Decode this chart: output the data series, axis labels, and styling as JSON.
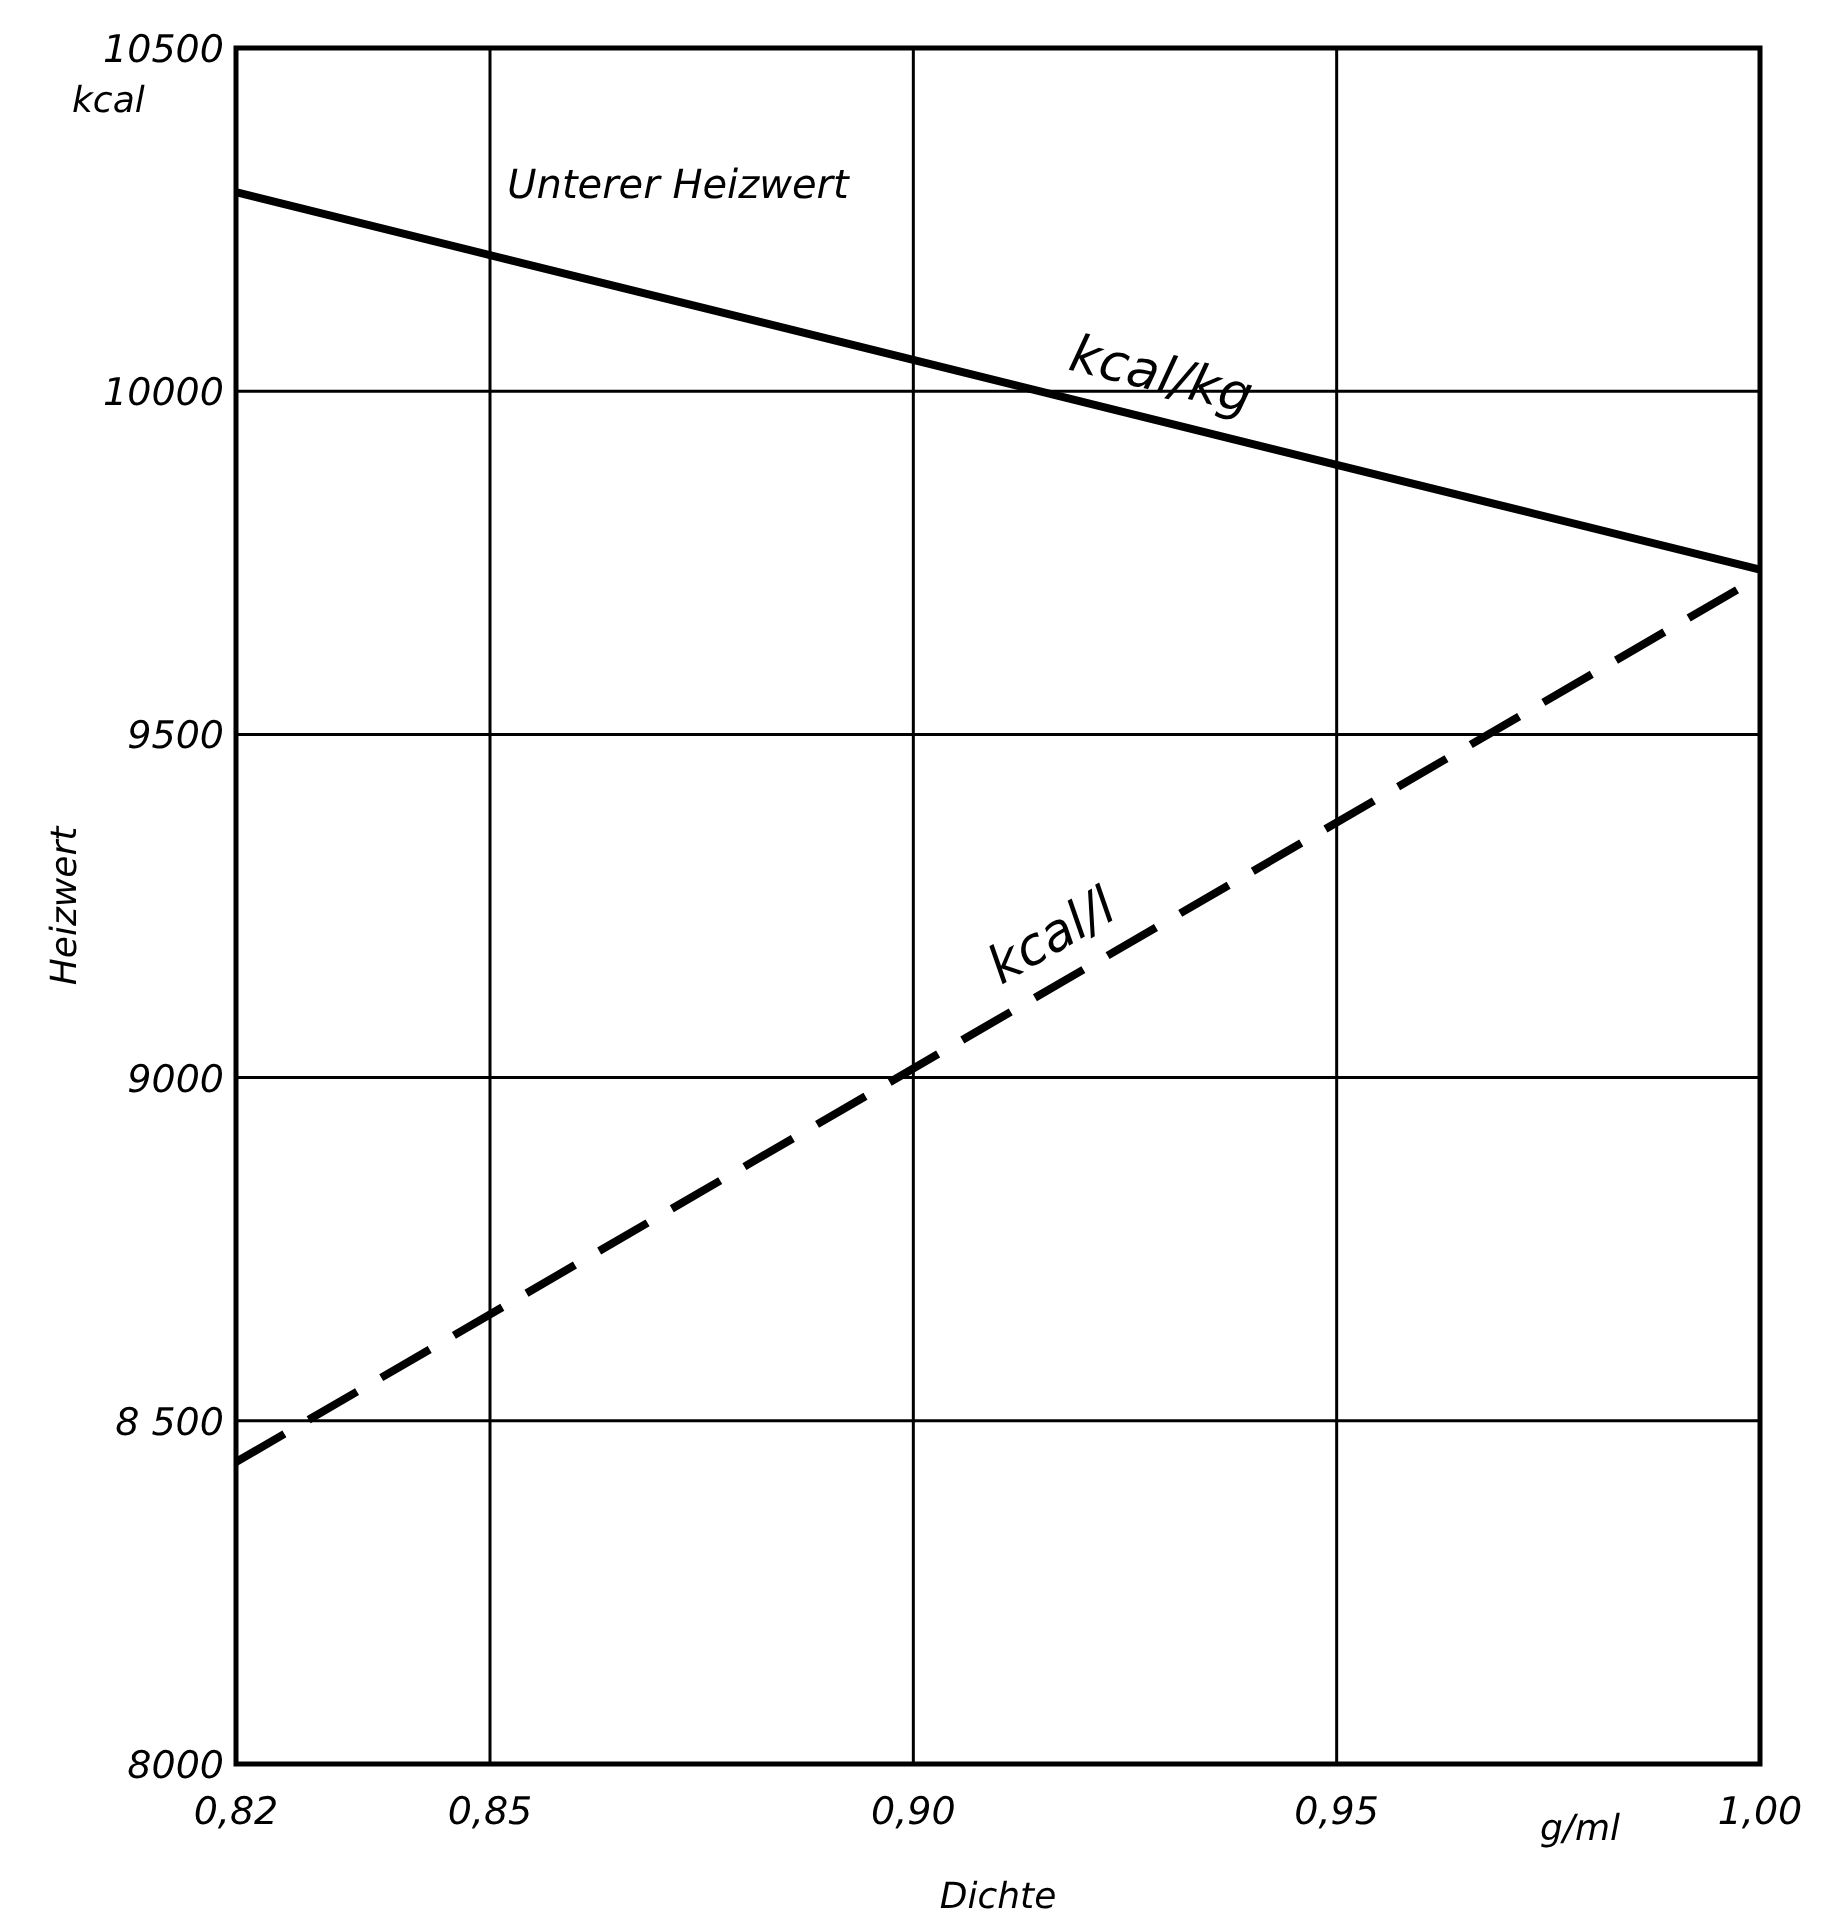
{
  "chart_data": {
    "type": "line",
    "title": "Unterer Heizwert",
    "xlabel": "Dichte",
    "ylabel": "Heizwert",
    "annotations": [
      "kcal",
      "g/ml"
    ],
    "x": [
      0.82,
      1.0
    ],
    "xlim": [
      0.82,
      1.0
    ],
    "xticks": [
      {
        "value": 0.82,
        "label": "0,82"
      },
      {
        "value": 0.85,
        "label": "0,85"
      },
      {
        "value": 0.9,
        "label": "0,90"
      },
      {
        "value": 0.95,
        "label": "0,95"
      },
      {
        "value": 1.0,
        "label": "1,00"
      }
    ],
    "ylim": [
      8000,
      10500
    ],
    "yticks": [
      8000,
      {
        "value": 8500,
        "label": "8 500"
      },
      9000,
      9500,
      10000,
      10500
    ],
    "grid": true,
    "legend": false,
    "marker": "none",
    "series": [
      {
        "name": "kcal/kg",
        "color": "#000000",
        "values": [
          10290,
          9740
        ],
        "line_style": "solid"
      },
      {
        "name": "kcal/l",
        "color": "#000000",
        "values": [
          8440,
          9730
        ],
        "line_style": "dashed"
      }
    ]
  }
}
